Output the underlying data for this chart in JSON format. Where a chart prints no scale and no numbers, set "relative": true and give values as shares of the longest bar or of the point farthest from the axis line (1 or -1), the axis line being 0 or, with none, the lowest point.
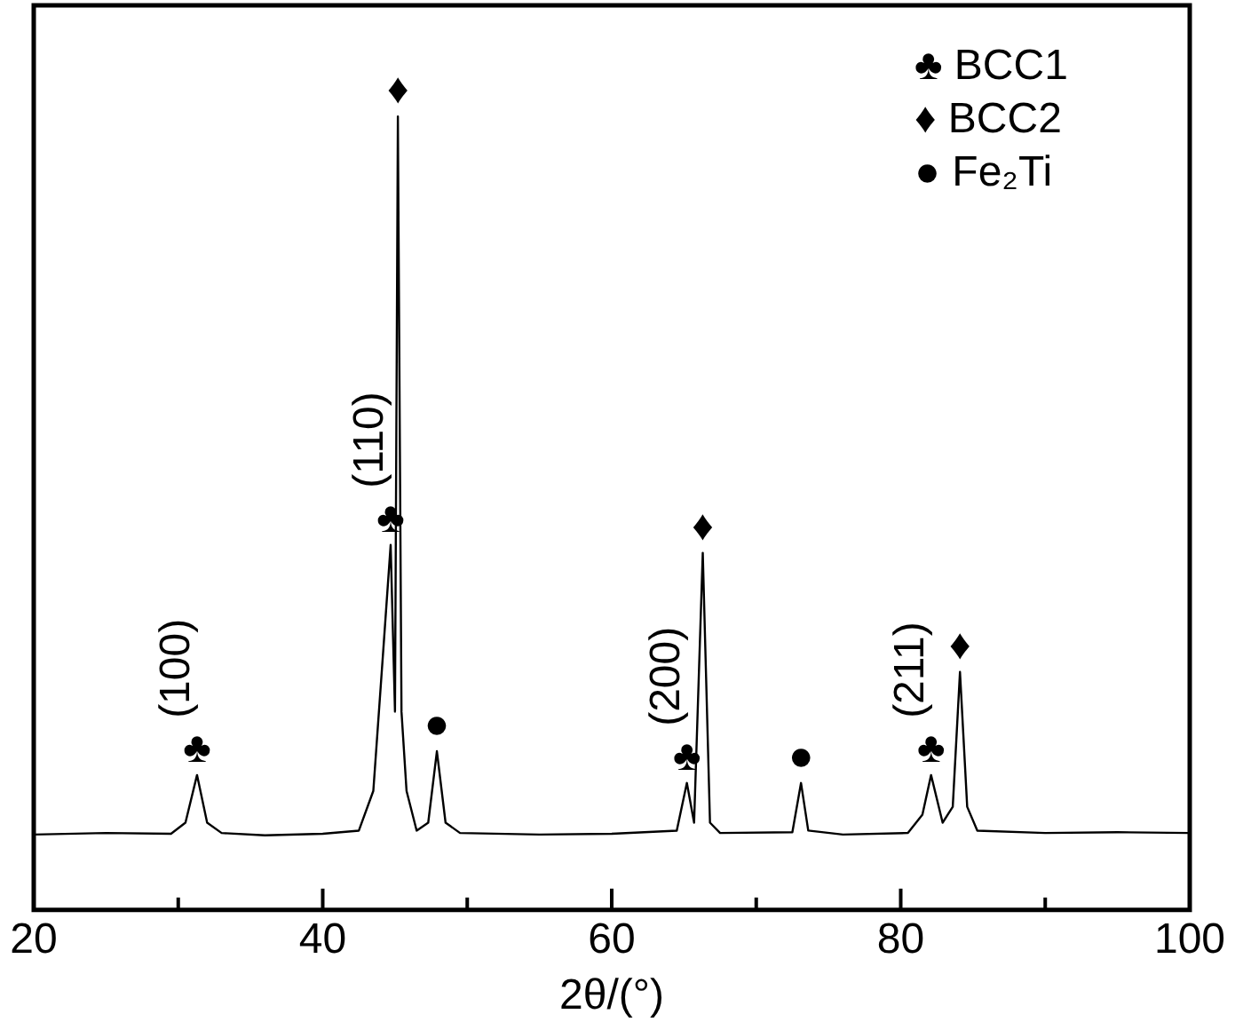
{
  "chart_data": {
    "type": "line",
    "relative": true,
    "xlabel": "2θ/(°)",
    "xlim": [
      20,
      100
    ],
    "xticks": [
      20,
      {
        "value": 30,
        "label": null
      },
      40,
      {
        "value": 50,
        "label": null
      },
      60,
      {
        "value": 70,
        "label": null
      },
      80,
      {
        "value": 90,
        "label": null
      },
      100
    ],
    "tick_labels": "x",
    "grid": false,
    "series": [
      {
        "color": "#000000",
        "marker": "none",
        "x": [
          20,
          25,
          29.5,
          30.5,
          31.3,
          32,
          33,
          36,
          40,
          42.5,
          43.5,
          44.2,
          44.7,
          45.0,
          45.2,
          45.45,
          45.8,
          46.5,
          47.3,
          47.9,
          48.5,
          49.5,
          55,
          60,
          64.5,
          65.2,
          65.7,
          66.3,
          66.8,
          67.5,
          72.5,
          73.1,
          73.6,
          76,
          80.5,
          81.5,
          82.1,
          82.9,
          83.6,
          84.1,
          84.6,
          85.3,
          90,
          95,
          100
        ],
        "values": [
          0.095,
          0.097,
          0.096,
          0.11,
          0.17,
          0.11,
          0.097,
          0.094,
          0.096,
          0.1,
          0.15,
          0.33,
          0.46,
          0.25,
          1,
          0.25,
          0.15,
          0.1,
          0.11,
          0.2,
          0.11,
          0.097,
          0.095,
          0.096,
          0.1,
          0.16,
          0.11,
          0.45,
          0.11,
          0.097,
          0.098,
          0.16,
          0.1,
          0.095,
          0.097,
          0.12,
          0.17,
          0.11,
          0.13,
          0.3,
          0.13,
          0.1,
          0.097,
          0.098,
          0.097
        ]
      }
    ],
    "annotations": [
      "♣ BCC1",
      "♦ BCC2",
      "● Fe₂Ti",
      {
        "text": "♣",
        "x": 31.3,
        "y": 0.17
      },
      {
        "text": "(100)",
        "x": 31.3,
        "y": 0.17
      },
      {
        "text": "♣",
        "x": 44.7,
        "y": 0.46
      },
      {
        "text": "(110)",
        "x": 44.7,
        "y": 0.46
      },
      {
        "text": "♦",
        "x": 45.2,
        "y": 1
      },
      {
        "text": "●",
        "x": 47.9,
        "y": 0.2
      },
      {
        "text": "♣",
        "x": 65.2,
        "y": 0.16
      },
      {
        "text": "(200)",
        "x": 65.2,
        "y": 0.16
      },
      {
        "text": "♦",
        "x": 66.3,
        "y": 0.45
      },
      {
        "text": "●",
        "x": 73.1,
        "y": 0.16
      },
      {
        "text": "♣",
        "x": 82.1,
        "y": 0.17
      },
      {
        "text": "(211)",
        "x": 82.1,
        "y": 0.17
      },
      {
        "text": "♦",
        "x": 84.1,
        "y": 0.3
      }
    ]
  }
}
